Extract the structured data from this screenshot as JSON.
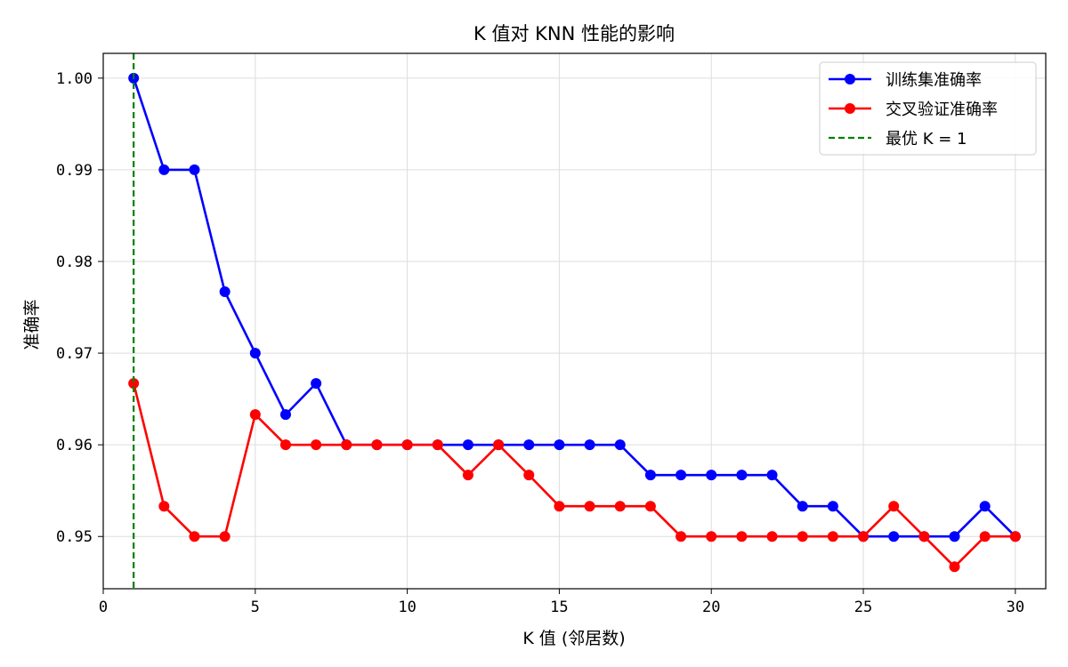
{
  "chart_data": {
    "type": "line",
    "title": "K 值对 KNN 性能的影响",
    "xlabel": "K 值 (邻居数)",
    "ylabel": "准确率",
    "xlim": [
      0,
      31
    ],
    "ylim": [
      0.9443,
      1.0027
    ],
    "xticks": [
      0,
      5,
      10,
      15,
      20,
      25,
      30
    ],
    "yticks": [
      0.95,
      0.96,
      0.97,
      0.98,
      0.99,
      1.0
    ],
    "ytick_labels": [
      "0.95",
      "0.96",
      "0.97",
      "0.98",
      "0.99",
      "1.00"
    ],
    "grid": true,
    "legend_position": "top-right",
    "x": [
      1,
      2,
      3,
      4,
      5,
      6,
      7,
      8,
      9,
      10,
      11,
      12,
      13,
      14,
      15,
      16,
      17,
      18,
      19,
      20,
      21,
      22,
      23,
      24,
      25,
      26,
      27,
      28,
      29,
      30
    ],
    "series": [
      {
        "name": "训练集准确率",
        "color": "#0000ff",
        "values": [
          1.0,
          0.99,
          0.99,
          0.9767,
          0.97,
          0.9633,
          0.9667,
          0.96,
          0.96,
          0.96,
          0.96,
          0.96,
          0.96,
          0.96,
          0.96,
          0.96,
          0.96,
          0.9567,
          0.9567,
          0.9567,
          0.9567,
          0.9567,
          0.9533,
          0.9533,
          0.95,
          0.95,
          0.95,
          0.95,
          0.9533,
          0.95
        ]
      },
      {
        "name": "交叉验证准确率",
        "color": "#ff0000",
        "values": [
          0.9667,
          0.9533,
          0.95,
          0.95,
          0.9633,
          0.96,
          0.96,
          0.96,
          0.96,
          0.96,
          0.96,
          0.9567,
          0.96,
          0.9567,
          0.9533,
          0.9533,
          0.9533,
          0.9533,
          0.95,
          0.95,
          0.95,
          0.95,
          0.95,
          0.95,
          0.95,
          0.9533,
          0.95,
          0.9467,
          0.95,
          0.95
        ]
      }
    ],
    "vline": {
      "x": 1,
      "label": "最优 K = 1",
      "color": "#008000",
      "style": "dashed"
    }
  }
}
